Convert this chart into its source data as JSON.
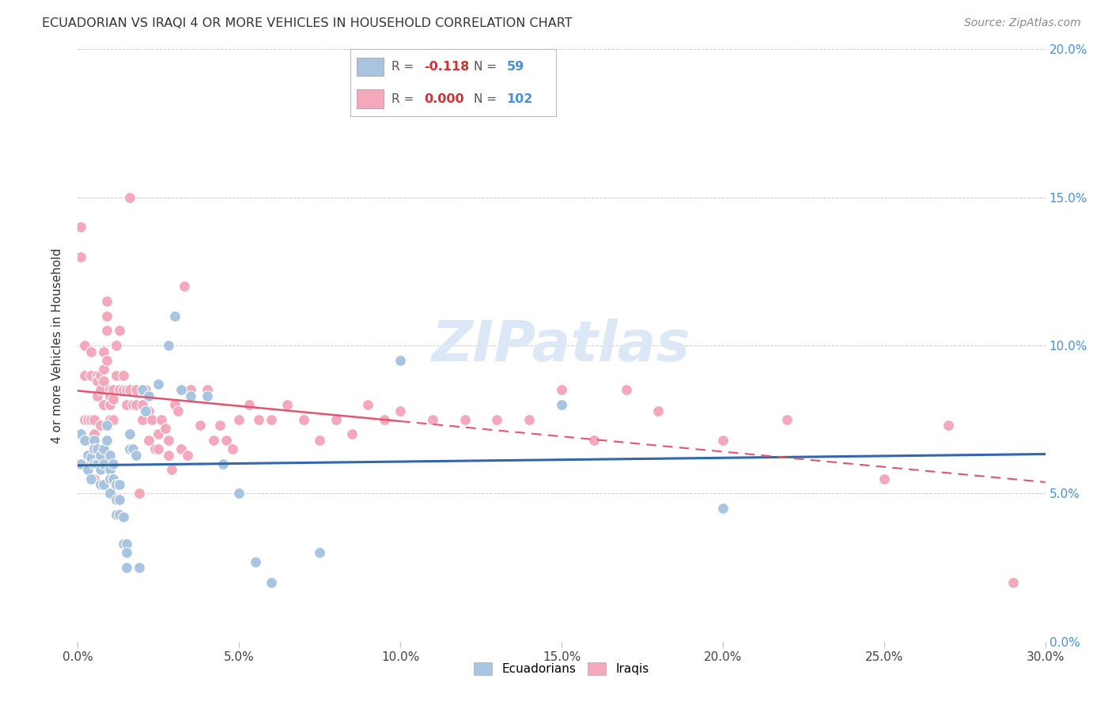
{
  "title": "ECUADORIAN VS IRAQI 4 OR MORE VEHICLES IN HOUSEHOLD CORRELATION CHART",
  "source": "Source: ZipAtlas.com",
  "ylabel": "4 or more Vehicles in Household",
  "xlim": [
    0.0,
    0.3
  ],
  "ylim": [
    0.0,
    0.2
  ],
  "xticks": [
    0.0,
    0.05,
    0.1,
    0.15,
    0.2,
    0.25,
    0.3
  ],
  "yticks": [
    0.0,
    0.05,
    0.1,
    0.15,
    0.2
  ],
  "legend_blue_r": "-0.118",
  "legend_blue_n": "59",
  "legend_pink_r": "0.000",
  "legend_pink_n": "102",
  "blue_color": "#a8c4e0",
  "pink_color": "#f4a8bc",
  "blue_line_color": "#3366aa",
  "pink_line_color": "#e05570",
  "ecuadorians_x": [
    0.001,
    0.001,
    0.002,
    0.003,
    0.003,
    0.004,
    0.004,
    0.005,
    0.005,
    0.005,
    0.006,
    0.006,
    0.007,
    0.007,
    0.007,
    0.008,
    0.008,
    0.008,
    0.009,
    0.009,
    0.01,
    0.01,
    0.01,
    0.01,
    0.011,
    0.011,
    0.012,
    0.012,
    0.012,
    0.013,
    0.013,
    0.013,
    0.014,
    0.014,
    0.015,
    0.015,
    0.015,
    0.016,
    0.016,
    0.017,
    0.018,
    0.019,
    0.02,
    0.021,
    0.022,
    0.025,
    0.028,
    0.03,
    0.032,
    0.035,
    0.04,
    0.045,
    0.05,
    0.055,
    0.06,
    0.075,
    0.1,
    0.15,
    0.2
  ],
  "ecuadorians_y": [
    0.07,
    0.06,
    0.068,
    0.063,
    0.058,
    0.062,
    0.055,
    0.068,
    0.065,
    0.06,
    0.065,
    0.06,
    0.063,
    0.058,
    0.053,
    0.065,
    0.06,
    0.053,
    0.073,
    0.068,
    0.063,
    0.058,
    0.055,
    0.05,
    0.06,
    0.055,
    0.053,
    0.048,
    0.043,
    0.053,
    0.048,
    0.043,
    0.042,
    0.033,
    0.033,
    0.03,
    0.025,
    0.07,
    0.065,
    0.065,
    0.063,
    0.025,
    0.085,
    0.078,
    0.083,
    0.087,
    0.1,
    0.11,
    0.085,
    0.083,
    0.083,
    0.06,
    0.05,
    0.027,
    0.02,
    0.03,
    0.095,
    0.08,
    0.045
  ],
  "iraqis_x": [
    0.001,
    0.001,
    0.002,
    0.002,
    0.002,
    0.003,
    0.003,
    0.003,
    0.004,
    0.004,
    0.004,
    0.005,
    0.005,
    0.005,
    0.005,
    0.006,
    0.006,
    0.006,
    0.007,
    0.007,
    0.007,
    0.008,
    0.008,
    0.008,
    0.008,
    0.009,
    0.009,
    0.009,
    0.009,
    0.01,
    0.01,
    0.01,
    0.01,
    0.011,
    0.011,
    0.011,
    0.012,
    0.012,
    0.013,
    0.013,
    0.014,
    0.014,
    0.015,
    0.015,
    0.016,
    0.016,
    0.017,
    0.017,
    0.018,
    0.018,
    0.019,
    0.02,
    0.02,
    0.021,
    0.022,
    0.022,
    0.023,
    0.024,
    0.025,
    0.025,
    0.026,
    0.027,
    0.028,
    0.028,
    0.029,
    0.03,
    0.031,
    0.032,
    0.033,
    0.034,
    0.035,
    0.038,
    0.04,
    0.042,
    0.044,
    0.046,
    0.048,
    0.05,
    0.053,
    0.056,
    0.06,
    0.065,
    0.07,
    0.075,
    0.08,
    0.085,
    0.09,
    0.095,
    0.1,
    0.11,
    0.12,
    0.13,
    0.14,
    0.15,
    0.16,
    0.17,
    0.18,
    0.2,
    0.22,
    0.25,
    0.27,
    0.29
  ],
  "iraqis_y": [
    0.14,
    0.13,
    0.1,
    0.09,
    0.075,
    0.075,
    0.068,
    0.06,
    0.098,
    0.09,
    0.075,
    0.075,
    0.07,
    0.068,
    0.055,
    0.09,
    0.088,
    0.083,
    0.09,
    0.085,
    0.073,
    0.098,
    0.092,
    0.088,
    0.08,
    0.115,
    0.11,
    0.105,
    0.095,
    0.085,
    0.083,
    0.08,
    0.075,
    0.085,
    0.082,
    0.075,
    0.1,
    0.09,
    0.105,
    0.085,
    0.09,
    0.085,
    0.085,
    0.08,
    0.15,
    0.085,
    0.065,
    0.08,
    0.085,
    0.08,
    0.05,
    0.08,
    0.075,
    0.085,
    0.078,
    0.068,
    0.075,
    0.065,
    0.07,
    0.065,
    0.075,
    0.072,
    0.068,
    0.063,
    0.058,
    0.08,
    0.078,
    0.065,
    0.12,
    0.063,
    0.085,
    0.073,
    0.085,
    0.068,
    0.073,
    0.068,
    0.065,
    0.075,
    0.08,
    0.075,
    0.075,
    0.08,
    0.075,
    0.068,
    0.075,
    0.07,
    0.08,
    0.075,
    0.078,
    0.075,
    0.075,
    0.075,
    0.075,
    0.085,
    0.068,
    0.085,
    0.078,
    0.068,
    0.075,
    0.055,
    0.073,
    0.02
  ]
}
